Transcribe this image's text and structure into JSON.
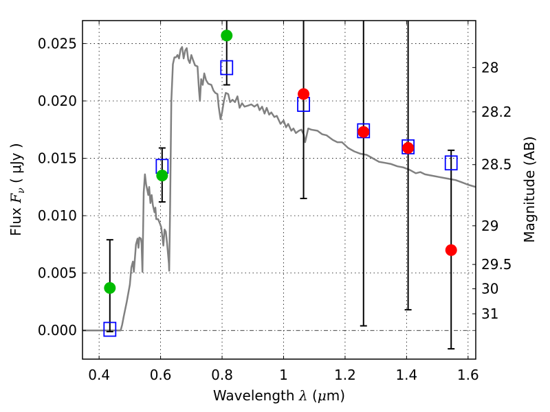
{
  "chart_data": {
    "type": "scatter",
    "title": "",
    "xlabel": "Wavelength  λ (μm)",
    "xlabel_parts": {
      "text": "Wavelength  ",
      "symbol": "λ",
      "unit_open": " (",
      "unit_mu": "μ",
      "unit_rest": "m)"
    },
    "ylabel": "Flux  Fν  ( μJy )",
    "ylabel_parts": {
      "text": "Flux  ",
      "symbol": "F",
      "sub": "ν",
      "unit": "  ( μJy )"
    },
    "y2label": "Magnitude (AB)",
    "xlim": [
      0.346,
      1.625
    ],
    "ylim": [
      -0.0025,
      0.027
    ],
    "grid": true,
    "x_ticks": [
      {
        "value": 0.4,
        "label": "0.4"
      },
      {
        "value": 0.6,
        "label": "0.6"
      },
      {
        "value": 0.8,
        "label": "0.8"
      },
      {
        "value": 1.0,
        "label": "1"
      },
      {
        "value": 1.2,
        "label": "1.2"
      },
      {
        "value": 1.4,
        "label": "1.4"
      },
      {
        "value": 1.6,
        "label": "1.6"
      }
    ],
    "y_ticks": [
      {
        "value": 0.0,
        "label": "0.000"
      },
      {
        "value": 0.005,
        "label": "0.005"
      },
      {
        "value": 0.01,
        "label": "0.010"
      },
      {
        "value": 0.015,
        "label": "0.015"
      },
      {
        "value": 0.02,
        "label": "0.020"
      },
      {
        "value": 0.025,
        "label": "0.025"
      }
    ],
    "y2_ticks": [
      {
        "flux": 0.02291,
        "label": "28"
      },
      {
        "flux": 0.01905,
        "label": "28.2"
      },
      {
        "flux": 0.01445,
        "label": "28.5"
      },
      {
        "flux": 0.00912,
        "label": "29"
      },
      {
        "flux": 0.00575,
        "label": "29.5"
      },
      {
        "flux": 0.00363,
        "label": "30"
      },
      {
        "flux": 0.00145,
        "label": "31"
      }
    ],
    "zero_line": {
      "y": 0.0,
      "style": "dash-dot"
    },
    "series": [
      {
        "name": "model-spectrum",
        "kind": "line",
        "color": "#808080",
        "points": [
          [
            0.346,
            0.0
          ],
          [
            0.47,
            0.0
          ],
          [
            0.475,
            0.0005
          ],
          [
            0.48,
            0.0012
          ],
          [
            0.49,
            0.0025
          ],
          [
            0.5,
            0.004
          ],
          [
            0.505,
            0.0055
          ],
          [
            0.51,
            0.006
          ],
          [
            0.513,
            0.0051
          ],
          [
            0.517,
            0.0065
          ],
          [
            0.52,
            0.0075
          ],
          [
            0.525,
            0.008
          ],
          [
            0.528,
            0.0072
          ],
          [
            0.531,
            0.0081
          ],
          [
            0.536,
            0.008
          ],
          [
            0.538,
            0.0076
          ],
          [
            0.541,
            0.0051
          ],
          [
            0.545,
            0.012
          ],
          [
            0.549,
            0.0136
          ],
          [
            0.553,
            0.0127
          ],
          [
            0.557,
            0.0122
          ],
          [
            0.56,
            0.0118
          ],
          [
            0.563,
            0.0125
          ],
          [
            0.567,
            0.0111
          ],
          [
            0.571,
            0.0118
          ],
          [
            0.575,
            0.0109
          ],
          [
            0.58,
            0.0103
          ],
          [
            0.583,
            0.0107
          ],
          [
            0.586,
            0.0097
          ],
          [
            0.592,
            0.0097
          ],
          [
            0.598,
            0.0093
          ],
          [
            0.602,
            0.009
          ],
          [
            0.606,
            0.0081
          ],
          [
            0.609,
            0.0074
          ],
          [
            0.613,
            0.0088
          ],
          [
            0.617,
            0.0086
          ],
          [
            0.621,
            0.0076
          ],
          [
            0.627,
            0.0058
          ],
          [
            0.628,
            0.0052
          ],
          [
            0.631,
            0.011
          ],
          [
            0.635,
            0.02
          ],
          [
            0.64,
            0.0232
          ],
          [
            0.645,
            0.0238
          ],
          [
            0.65,
            0.0238
          ],
          [
            0.655,
            0.024
          ],
          [
            0.66,
            0.0237
          ],
          [
            0.665,
            0.0245
          ],
          [
            0.67,
            0.0247
          ],
          [
            0.675,
            0.0237
          ],
          [
            0.68,
            0.0244
          ],
          [
            0.685,
            0.0246
          ],
          [
            0.69,
            0.0236
          ],
          [
            0.695,
            0.0233
          ],
          [
            0.7,
            0.024
          ],
          [
            0.705,
            0.0236
          ],
          [
            0.712,
            0.0231
          ],
          [
            0.72,
            0.023
          ],
          [
            0.725,
            0.0209
          ],
          [
            0.728,
            0.02
          ],
          [
            0.732,
            0.0219
          ],
          [
            0.737,
            0.0214
          ],
          [
            0.742,
            0.0224
          ],
          [
            0.748,
            0.0218
          ],
          [
            0.755,
            0.0215
          ],
          [
            0.765,
            0.0214
          ],
          [
            0.772,
            0.0209
          ],
          [
            0.778,
            0.0207
          ],
          [
            0.785,
            0.0206
          ],
          [
            0.789,
            0.0195
          ],
          [
            0.795,
            0.0184
          ],
          [
            0.8,
            0.019
          ],
          [
            0.806,
            0.02
          ],
          [
            0.812,
            0.0207
          ],
          [
            0.82,
            0.0206
          ],
          [
            0.826,
            0.0199
          ],
          [
            0.834,
            0.0201
          ],
          [
            0.842,
            0.0199
          ],
          [
            0.85,
            0.0204
          ],
          [
            0.857,
            0.0194
          ],
          [
            0.865,
            0.0198
          ],
          [
            0.873,
            0.0195
          ],
          [
            0.885,
            0.0196
          ],
          [
            0.895,
            0.0197
          ],
          [
            0.905,
            0.0195
          ],
          [
            0.915,
            0.0197
          ],
          [
            0.922,
            0.0192
          ],
          [
            0.93,
            0.0195
          ],
          [
            0.938,
            0.0189
          ],
          [
            0.945,
            0.0194
          ],
          [
            0.953,
            0.0188
          ],
          [
            0.96,
            0.019
          ],
          [
            0.97,
            0.0186
          ],
          [
            0.978,
            0.0187
          ],
          [
            0.99,
            0.018
          ],
          [
            1.0,
            0.0183
          ],
          [
            1.008,
            0.0177
          ],
          [
            1.015,
            0.018
          ],
          [
            1.025,
            0.0174
          ],
          [
            1.032,
            0.0176
          ],
          [
            1.04,
            0.0172
          ],
          [
            1.05,
            0.0174
          ],
          [
            1.058,
            0.0175
          ],
          [
            1.065,
            0.0171
          ],
          [
            1.07,
            0.0164
          ],
          [
            1.08,
            0.0176
          ],
          [
            1.09,
            0.0175
          ],
          [
            1.11,
            0.0174
          ],
          [
            1.125,
            0.0171
          ],
          [
            1.14,
            0.017
          ],
          [
            1.16,
            0.0166
          ],
          [
            1.175,
            0.0164
          ],
          [
            1.19,
            0.0164
          ],
          [
            1.21,
            0.0159
          ],
          [
            1.23,
            0.0156
          ],
          [
            1.25,
            0.0154
          ],
          [
            1.27,
            0.0153
          ],
          [
            1.29,
            0.015
          ],
          [
            1.31,
            0.0147
          ],
          [
            1.33,
            0.0146
          ],
          [
            1.35,
            0.0145
          ],
          [
            1.37,
            0.0143
          ],
          [
            1.39,
            0.0142
          ],
          [
            1.41,
            0.014
          ],
          [
            1.43,
            0.0137
          ],
          [
            1.445,
            0.0138
          ],
          [
            1.46,
            0.0136
          ],
          [
            1.48,
            0.0135
          ],
          [
            1.5,
            0.0134
          ],
          [
            1.52,
            0.0133
          ],
          [
            1.54,
            0.0132
          ],
          [
            1.56,
            0.0131
          ],
          [
            1.58,
            0.0129
          ],
          [
            1.6,
            0.0127
          ],
          [
            1.625,
            0.0125
          ]
        ]
      },
      {
        "name": "model-photometry",
        "kind": "open-square",
        "color": "#0000ff",
        "points": [
          [
            0.435,
            0.0001
          ],
          [
            0.605,
            0.0143
          ],
          [
            0.815,
            0.0229
          ],
          [
            1.065,
            0.0197
          ],
          [
            1.26,
            0.0174
          ],
          [
            1.405,
            0.016
          ],
          [
            1.545,
            0.0146
          ]
        ]
      },
      {
        "name": "observed-detections",
        "kind": "filled-circle",
        "color": "#00bb00",
        "points": [
          [
            0.435,
            0.0037
          ],
          [
            0.605,
            0.0135
          ],
          [
            0.815,
            0.0257
          ]
        ]
      },
      {
        "name": "observed-upper-limits",
        "kind": "filled-circle",
        "color": "#ff0000",
        "points": [
          [
            1.065,
            0.0206
          ],
          [
            1.26,
            0.0173
          ],
          [
            1.405,
            0.0159
          ],
          [
            1.545,
            0.007
          ]
        ]
      }
    ],
    "error_bars": [
      {
        "x": 0.435,
        "low": -0.0001,
        "high": 0.0079
      },
      {
        "x": 0.605,
        "low": 0.0112,
        "high": 0.0159
      },
      {
        "x": 0.815,
        "low": 0.0214,
        "high": 0.03
      },
      {
        "x": 1.065,
        "low": 0.0115,
        "high": 0.03
      },
      {
        "x": 1.26,
        "low": 0.0004,
        "high": 0.03
      },
      {
        "x": 1.405,
        "low": 0.0018,
        "high": 0.03
      },
      {
        "x": 1.545,
        "low": -0.0016,
        "high": 0.0157
      }
    ]
  }
}
